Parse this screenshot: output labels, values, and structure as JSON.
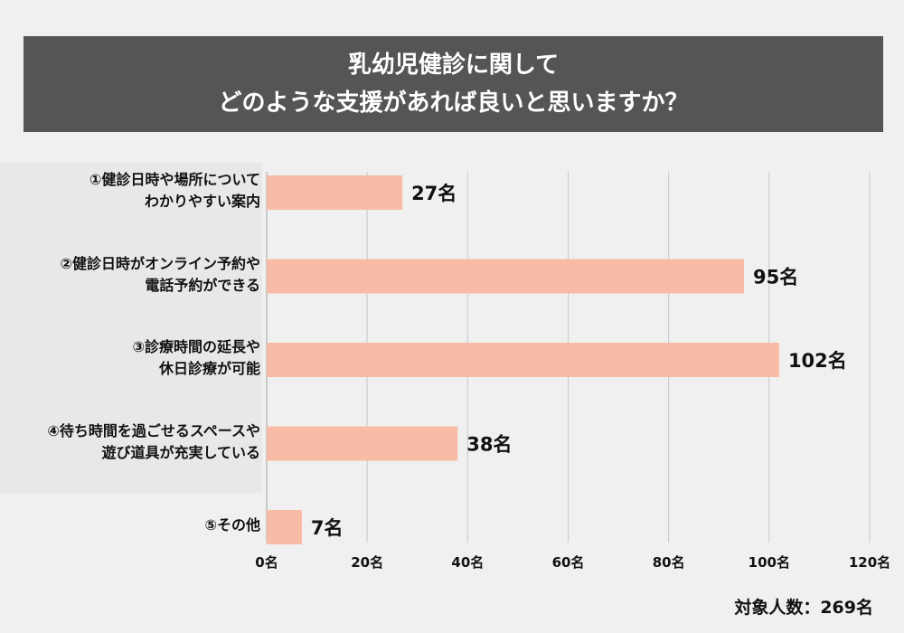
{
  "chart_data": {
    "type": "bar",
    "orientation": "horizontal",
    "title_lines": [
      "乳幼児健診に関して",
      "どのような支援があれば良いと思いますか？"
    ],
    "categories": [
      "①健診日時や場所について\nわかりやすい案内",
      "②健診日時がオンライン予約や\n電話予約ができる",
      "③診療時間の延長や\n休日診療が可能",
      "④待ち時間を過ごせるスペースや\n遊び道具が充実している",
      "⑤その他"
    ],
    "values": [
      27,
      95,
      102,
      38,
      7
    ],
    "value_labels": [
      "27名",
      "95名",
      "102名",
      "38名",
      "7名"
    ],
    "xlim": [
      0,
      120
    ],
    "x_ticks": [
      0,
      20,
      40,
      60,
      80,
      100,
      120
    ],
    "x_tick_labels": [
      "0名",
      "20名",
      "40名",
      "60名",
      "80名",
      "100名",
      "120名"
    ],
    "grid": true,
    "bar_color": "#f8bba5",
    "footer": "対象人数：269名"
  }
}
